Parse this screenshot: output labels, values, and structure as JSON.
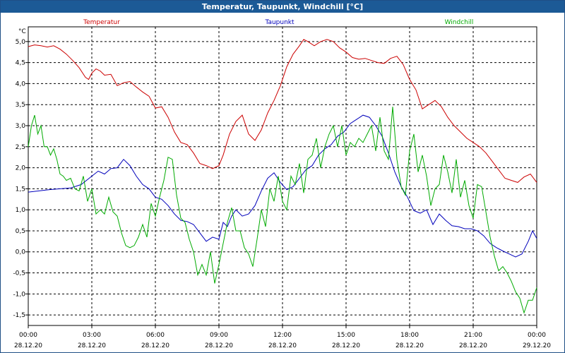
{
  "window_title": "Temperatur, Taupunkt, Windchill [°C]",
  "colors": {
    "titlebar": "#1c5a96",
    "temperatur": "#cc0000",
    "taupunkt": "#0000bb",
    "windchill": "#00aa00",
    "grid": "#000000"
  },
  "chart_data": {
    "type": "line",
    "title": "Temperatur, Taupunkt, Windchill [°C]",
    "ylabel": "°C",
    "xlabel": "",
    "xlim": [
      0,
      24
    ],
    "ylim": [
      -1.75,
      5.35
    ],
    "grid": true,
    "y_ticks": [
      5.0,
      4.5,
      4.0,
      3.5,
      3.0,
      2.5,
      2.0,
      1.5,
      1.0,
      0.5,
      0.0,
      -0.5,
      -1.0,
      -1.5
    ],
    "y_tick_labels": [
      "5,0",
      "4,5",
      "4,0",
      "3,5",
      "3,0",
      "2,5",
      "2,0",
      "1,5",
      "1,0",
      "0,5",
      "0,0",
      "-0,5",
      "-1,0",
      "-1,5"
    ],
    "x_ticks": [
      0,
      3,
      6,
      9,
      12,
      15,
      18,
      21,
      24
    ],
    "x_tick_labels": [
      {
        "time": "00:00",
        "date": "28.12.20"
      },
      {
        "time": "03:00",
        "date": "28.12.20"
      },
      {
        "time": "06:00",
        "date": "28.12.20"
      },
      {
        "time": "09:00",
        "date": "28.12.20"
      },
      {
        "time": "12:00",
        "date": "28.12.20"
      },
      {
        "time": "15:00",
        "date": "28.12.20"
      },
      {
        "time": "18:00",
        "date": "28.12.20"
      },
      {
        "time": "21:00",
        "date": "28.12.20"
      },
      {
        "time": "00:00",
        "date": "29.12.20"
      }
    ],
    "series": [
      {
        "name": "Temperatur",
        "x": [
          0,
          0.3,
          0.6,
          0.9,
          1.2,
          1.5,
          1.8,
          2.1,
          2.4,
          2.7,
          2.85,
          3.0,
          3.2,
          3.4,
          3.6,
          3.9,
          4.2,
          4.5,
          4.8,
          5.1,
          5.4,
          5.7,
          6.0,
          6.3,
          6.6,
          6.9,
          7.2,
          7.5,
          7.8,
          8.1,
          8.4,
          8.7,
          9.0,
          9.2,
          9.5,
          9.8,
          10.1,
          10.4,
          10.7,
          11.0,
          11.3,
          11.6,
          11.9,
          12.2,
          12.5,
          12.8,
          13.0,
          13.2,
          13.5,
          13.8,
          14.1,
          14.4,
          14.7,
          15.0,
          15.3,
          15.6,
          15.9,
          16.2,
          16.5,
          16.8,
          17.1,
          17.4,
          17.7,
          18.0,
          18.3,
          18.6,
          18.9,
          19.2,
          19.5,
          19.8,
          20.1,
          20.4,
          20.7,
          21.0,
          21.3,
          21.6,
          21.9,
          22.2,
          22.5,
          22.8,
          23.1,
          23.4,
          23.7,
          24.0
        ],
        "values": [
          4.88,
          4.92,
          4.9,
          4.87,
          4.9,
          4.82,
          4.7,
          4.55,
          4.38,
          4.15,
          4.1,
          4.25,
          4.35,
          4.3,
          4.2,
          4.22,
          3.95,
          4.02,
          4.05,
          3.92,
          3.8,
          3.7,
          3.42,
          3.45,
          3.2,
          2.85,
          2.6,
          2.55,
          2.35,
          2.1,
          2.05,
          1.98,
          2.05,
          2.3,
          2.8,
          3.1,
          3.25,
          2.8,
          2.65,
          2.9,
          3.3,
          3.6,
          3.95,
          4.4,
          4.7,
          4.9,
          5.05,
          5.0,
          4.9,
          5.0,
          5.05,
          5.0,
          4.85,
          4.75,
          4.62,
          4.58,
          4.6,
          4.55,
          4.5,
          4.48,
          4.6,
          4.65,
          4.45,
          4.1,
          3.85,
          3.4,
          3.5,
          3.6,
          3.45,
          3.2,
          3.0,
          2.85,
          2.7,
          2.6,
          2.5,
          2.35,
          2.15,
          1.95,
          1.75,
          1.7,
          1.65,
          1.78,
          1.85,
          1.65
        ]
      },
      {
        "name": "Taupunkt",
        "x": [
          0,
          0.5,
          1.0,
          1.5,
          2.0,
          2.5,
          3.0,
          3.3,
          3.6,
          3.9,
          4.2,
          4.5,
          4.8,
          5.1,
          5.4,
          5.7,
          6.0,
          6.3,
          6.6,
          6.9,
          7.2,
          7.5,
          7.8,
          8.1,
          8.4,
          8.7,
          9.0,
          9.2,
          9.4,
          9.6,
          9.8,
          10.1,
          10.4,
          10.7,
          11.0,
          11.3,
          11.6,
          11.9,
          12.2,
          12.5,
          12.8,
          13.1,
          13.4,
          13.7,
          14.0,
          14.3,
          14.6,
          14.9,
          15.2,
          15.5,
          15.8,
          16.1,
          16.4,
          16.7,
          17.0,
          17.3,
          17.6,
          17.9,
          18.2,
          18.5,
          18.8,
          19.1,
          19.4,
          19.7,
          20.0,
          20.3,
          20.6,
          20.9,
          21.2,
          21.5,
          21.8,
          22.1,
          22.4,
          22.7,
          23.0,
          23.3,
          23.6,
          23.8,
          24.0
        ],
        "values": [
          1.42,
          1.45,
          1.48,
          1.5,
          1.52,
          1.6,
          1.8,
          1.92,
          1.85,
          1.98,
          2.0,
          2.2,
          2.05,
          1.8,
          1.6,
          1.5,
          1.3,
          1.25,
          1.1,
          0.9,
          0.75,
          0.72,
          0.65,
          0.45,
          0.25,
          0.35,
          0.3,
          0.7,
          0.6,
          0.85,
          1.0,
          0.85,
          0.9,
          1.1,
          1.45,
          1.75,
          1.88,
          1.65,
          1.48,
          1.55,
          1.75,
          1.95,
          2.05,
          2.3,
          2.45,
          2.55,
          2.75,
          2.85,
          3.05,
          3.15,
          3.25,
          3.2,
          3.0,
          2.75,
          2.35,
          1.9,
          1.55,
          1.3,
          0.98,
          0.92,
          1.0,
          0.65,
          0.9,
          0.75,
          0.62,
          0.6,
          0.55,
          0.55,
          0.5,
          0.38,
          0.2,
          0.1,
          0.02,
          -0.05,
          -0.12,
          -0.05,
          0.25,
          0.5,
          0.32
        ]
      },
      {
        "name": "Windchill",
        "x": [
          0,
          0.15,
          0.3,
          0.45,
          0.6,
          0.75,
          0.9,
          1.05,
          1.2,
          1.35,
          1.5,
          1.65,
          1.8,
          2.0,
          2.2,
          2.4,
          2.6,
          2.8,
          3.0,
          3.2,
          3.4,
          3.6,
          3.8,
          4.0,
          4.2,
          4.4,
          4.6,
          4.8,
          5.0,
          5.2,
          5.4,
          5.6,
          5.8,
          6.0,
          6.2,
          6.4,
          6.6,
          6.8,
          7.0,
          7.2,
          7.4,
          7.6,
          7.8,
          8.0,
          8.2,
          8.4,
          8.6,
          8.8,
          9.0,
          9.2,
          9.4,
          9.6,
          9.8,
          10.0,
          10.2,
          10.4,
          10.6,
          10.8,
          11.0,
          11.2,
          11.4,
          11.6,
          11.8,
          12.0,
          12.2,
          12.4,
          12.6,
          12.8,
          13.0,
          13.2,
          13.4,
          13.6,
          13.8,
          14.0,
          14.2,
          14.4,
          14.6,
          14.8,
          15.0,
          15.2,
          15.4,
          15.6,
          15.8,
          16.0,
          16.2,
          16.4,
          16.6,
          16.8,
          17.0,
          17.2,
          17.4,
          17.6,
          17.8,
          18.0,
          18.2,
          18.4,
          18.6,
          18.8,
          19.0,
          19.2,
          19.4,
          19.6,
          19.8,
          20.0,
          20.2,
          20.4,
          20.6,
          20.8,
          21.0,
          21.2,
          21.4,
          21.6,
          21.8,
          22.0,
          22.2,
          22.4,
          22.6,
          22.8,
          23.0,
          23.2,
          23.4,
          23.6,
          23.8,
          24.0
        ],
        "values": [
          2.5,
          3.0,
          3.25,
          2.8,
          3.0,
          2.5,
          2.5,
          2.3,
          2.45,
          2.2,
          1.85,
          1.8,
          1.7,
          1.75,
          1.5,
          1.45,
          1.8,
          1.2,
          1.5,
          0.9,
          1.0,
          0.9,
          1.3,
          0.95,
          0.85,
          0.45,
          0.15,
          0.1,
          0.15,
          0.35,
          0.65,
          0.35,
          1.15,
          0.85,
          1.3,
          1.7,
          2.25,
          2.2,
          1.35,
          0.8,
          0.7,
          0.3,
          0.0,
          -0.55,
          -0.3,
          -0.55,
          0.0,
          -0.75,
          -0.3,
          0.2,
          0.7,
          1.05,
          0.5,
          0.5,
          0.1,
          -0.05,
          -0.35,
          0.3,
          1.0,
          0.6,
          1.5,
          1.2,
          1.8,
          1.2,
          1.0,
          1.8,
          1.6,
          2.1,
          1.4,
          2.2,
          2.3,
          2.7,
          2.0,
          2.5,
          2.8,
          3.0,
          2.5,
          3.0,
          2.3,
          2.6,
          2.5,
          2.7,
          2.6,
          2.8,
          3.0,
          2.4,
          3.2,
          2.4,
          2.2,
          3.45,
          2.2,
          1.55,
          1.35,
          2.4,
          2.8,
          1.9,
          2.3,
          1.8,
          1.1,
          1.5,
          1.6,
          2.3,
          1.9,
          1.4,
          2.2,
          1.3,
          1.7,
          1.1,
          0.8,
          1.6,
          1.55,
          0.95,
          0.35,
          -0.1,
          -0.45,
          -0.35,
          -0.5,
          -0.7,
          -0.95,
          -1.1,
          -1.45,
          -1.15,
          -1.15,
          -0.85
        ]
      }
    ]
  }
}
